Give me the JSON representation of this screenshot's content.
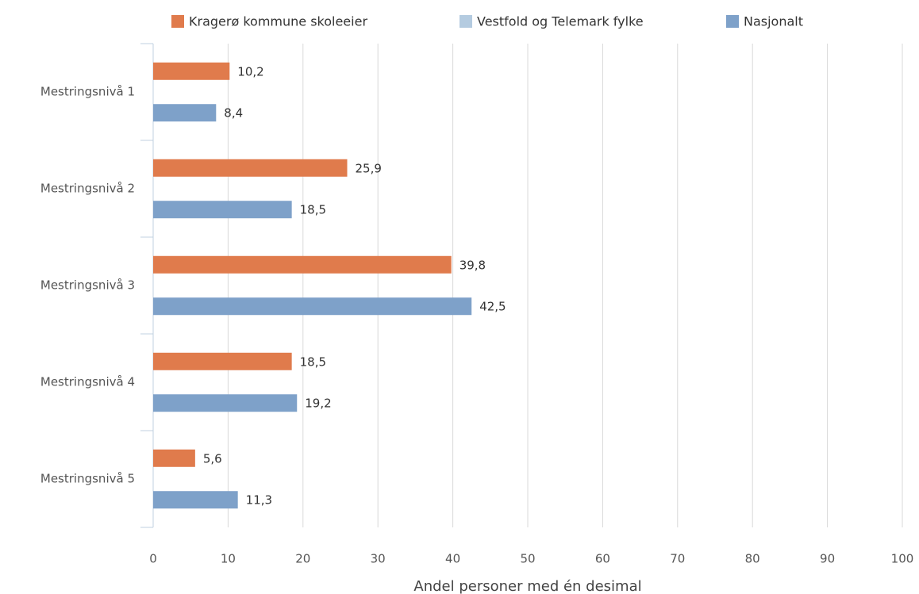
{
  "chart_data": {
    "type": "hbar",
    "x_label": "Andel personer med én desimal",
    "categories": [
      "Mestringsnivå 1",
      "Mestringsnivå 2",
      "Mestringsnivå 3",
      "Mestringsnivå 4",
      "Mestringsnivå 5"
    ],
    "series": [
      {
        "name": "Kragerø kommune skoleeier",
        "color": "#e07b4c",
        "values": [
          10.2,
          25.9,
          39.8,
          18.5,
          5.6
        ],
        "value_labels": [
          "10,2",
          "25,9",
          "39,8",
          "18,5",
          "5,6"
        ]
      },
      {
        "name": "Vestfold og Telemark fylke",
        "color": "#b4cbe0",
        "values": [
          null,
          null,
          null,
          null,
          null
        ]
      },
      {
        "name": "Nasjonalt",
        "color": "#7ea1c9",
        "values": [
          8.4,
          18.5,
          42.5,
          19.2,
          11.3
        ],
        "value_labels": [
          "8,4",
          "18,5",
          "42,5",
          "19,2",
          "11,3"
        ]
      }
    ],
    "xlim": [
      0,
      100
    ],
    "xticks": [
      0,
      10,
      20,
      30,
      40,
      50,
      60,
      70,
      80,
      90,
      100
    ],
    "grid": true,
    "legend": "top"
  }
}
